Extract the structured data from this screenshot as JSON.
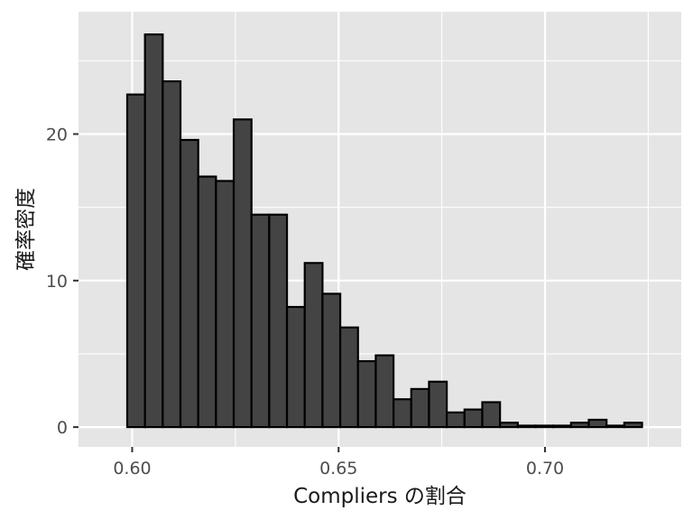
{
  "chart_data": {
    "type": "bar",
    "subtype": "histogram",
    "xlabel": "Compliers の割合",
    "ylabel": "確率密度",
    "xlim": [
      0.587,
      0.733
    ],
    "ylim": [
      -1.35,
      28.35
    ],
    "x_ticks": [
      {
        "value": 0.6,
        "label": "0.60"
      },
      {
        "value": 0.65,
        "label": "0.65"
      },
      {
        "value": 0.7,
        "label": "0.70"
      }
    ],
    "y_ticks": [
      {
        "value": 0,
        "label": "0"
      },
      {
        "value": 10,
        "label": "10"
      },
      {
        "value": 20,
        "label": "20"
      }
    ],
    "x_minor_ticks": [
      0.625,
      0.675,
      0.725
    ],
    "y_minor_ticks": [
      5,
      15,
      25
    ],
    "bin_width": 0.0043,
    "first_bin_left": 0.5988,
    "bin_density": [
      22.7,
      26.8,
      23.6,
      19.6,
      17.1,
      16.8,
      21.0,
      14.5,
      14.5,
      8.2,
      11.2,
      9.1,
      6.8,
      4.5,
      4.9,
      1.9,
      2.6,
      3.1,
      1.0,
      1.2,
      1.7,
      0.3,
      0.1,
      0.1,
      0.1,
      0.3,
      0.5,
      0.1,
      0.3
    ],
    "grid": true,
    "legend": "none",
    "colors": {
      "panel_background": "#e5e5e5",
      "grid_major": "#ffffff",
      "bar_fill": "#444444",
      "bar_outline": "#000000",
      "tick_text": "#4d4d4d",
      "axis_title": "#1a1a1a"
    }
  }
}
